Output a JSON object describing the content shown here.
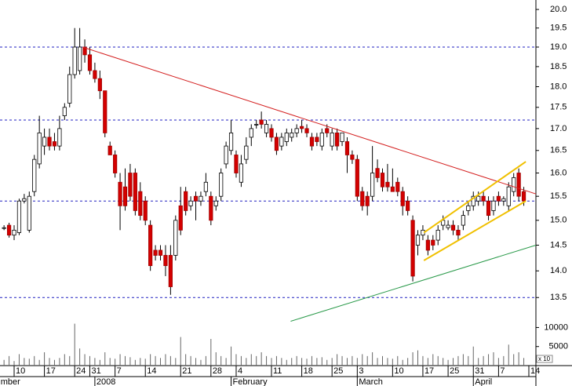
{
  "chart_data": {
    "type": "candlestick",
    "open": [
      14.85,
      14.9,
      14.7,
      14.75,
      15.4,
      14.8,
      15.6,
      16.2,
      16.6,
      16.8,
      16.7,
      16.6,
      17.3,
      17.6,
      18.3,
      18.4,
      19.0,
      18.8,
      18.4,
      18.2,
      17.9,
      16.6,
      16.4,
      15.8,
      15.7,
      16.0,
      16.0,
      15.6,
      15.4,
      14.9,
      14.4,
      14.4,
      14.3,
      14.3,
      14.3,
      15.3,
      15.6,
      15.3,
      15.5,
      15.4,
      15.6,
      15.5,
      15.3,
      15.5,
      16.2,
      16.5,
      16.4,
      15.8,
      16.3,
      16.8,
      17.1,
      17.2,
      16.9,
      17.0,
      16.8,
      16.6,
      16.7,
      16.8,
      16.9,
      17.05,
      17.0,
      16.8,
      16.8,
      16.6,
      17.0,
      16.6,
      16.9,
      16.7,
      16.7,
      16.4,
      16.3,
      15.6,
      15.5,
      15.5,
      16.1,
      16.0,
      15.8,
      15.7,
      15.8,
      15.6,
      15.4,
      15.0,
      14.5,
      14.7,
      14.6,
      14.6,
      14.6,
      14.9,
      14.85,
      14.9,
      14.8,
      14.9,
      15.2,
      15.3,
      15.4,
      15.5,
      15.4,
      15.2,
      15.5,
      15.4,
      15.3,
      15.6,
      16.0,
      15.6
    ],
    "high": [
      14.9,
      14.95,
      14.9,
      15.45,
      15.55,
      15.6,
      16.4,
      17.3,
      17.0,
      17.0,
      16.9,
      17.3,
      17.6,
      18.5,
      19.5,
      19.5,
      19.2,
      19.0,
      18.6,
      18.4,
      17.9,
      16.7,
      16.5,
      16.0,
      16.1,
      16.2,
      16.1,
      15.8,
      15.5,
      15.0,
      14.5,
      14.5,
      14.5,
      14.5,
      15.1,
      15.7,
      15.7,
      15.5,
      15.6,
      15.6,
      16.0,
      15.6,
      15.5,
      16.1,
      16.7,
      17.2,
      16.5,
      16.4,
      16.8,
      17.1,
      17.2,
      17.4,
      17.2,
      17.1,
      16.9,
      16.9,
      17.0,
      17.0,
      17.1,
      17.2,
      17.1,
      16.9,
      16.9,
      17.0,
      17.1,
      17.0,
      17.0,
      16.9,
      16.8,
      16.5,
      16.4,
      15.7,
      15.6,
      16.6,
      16.3,
      16.1,
      16.2,
      16.1,
      15.9,
      15.7,
      15.5,
      15.1,
      14.8,
      14.9,
      14.7,
      14.7,
      14.9,
      15.1,
      15.0,
      15.0,
      14.9,
      15.2,
      15.4,
      15.6,
      15.6,
      15.6,
      15.5,
      15.5,
      15.6,
      15.5,
      15.8,
      16.0,
      16.1,
      15.7
    ],
    "low": [
      14.8,
      14.65,
      14.6,
      14.7,
      15.35,
      14.75,
      15.5,
      16.1,
      16.4,
      16.5,
      16.5,
      16.5,
      17.2,
      17.5,
      18.2,
      18.3,
      18.6,
      18.3,
      18.1,
      17.7,
      16.8,
      16.4,
      15.9,
      14.8,
      15.2,
      15.4,
      15.1,
      15.0,
      14.9,
      14.0,
      14.2,
      14.2,
      13.9,
      13.55,
      14.2,
      14.7,
      15.1,
      15.2,
      15.0,
      15.3,
      15.5,
      14.9,
      15.2,
      15.4,
      16.1,
      16.4,
      15.9,
      15.7,
      16.2,
      16.6,
      17.0,
      17.0,
      16.8,
      16.7,
      16.4,
      16.5,
      16.6,
      16.7,
      16.8,
      16.9,
      16.8,
      16.5,
      16.6,
      16.5,
      16.8,
      16.5,
      16.5,
      16.6,
      16.0,
      16.2,
      15.4,
      15.2,
      15.1,
      15.4,
      15.8,
      15.6,
      15.6,
      15.6,
      15.5,
      15.1,
      15.1,
      13.8,
      14.3,
      14.6,
      14.3,
      14.4,
      14.5,
      14.8,
      14.8,
      14.7,
      14.6,
      14.8,
      15.1,
      15.2,
      15.3,
      15.3,
      15.0,
      15.1,
      15.3,
      15.3,
      15.2,
      15.5,
      15.4,
      15.3
    ],
    "close": [
      14.85,
      14.7,
      14.8,
      15.4,
      15.45,
      15.5,
      16.3,
      16.9,
      16.8,
      16.6,
      16.6,
      17.0,
      17.5,
      18.3,
      19.0,
      19.0,
      18.8,
      18.4,
      18.2,
      17.9,
      16.9,
      16.4,
      16.0,
      15.3,
      15.3,
      15.5,
      15.2,
      15.1,
      15.0,
      14.1,
      14.3,
      14.3,
      14.1,
      13.7,
      15.0,
      14.8,
      15.2,
      15.4,
      15.4,
      15.5,
      15.8,
      15.0,
      15.4,
      16.0,
      16.6,
      16.9,
      16.0,
      16.2,
      16.6,
      17.0,
      17.1,
      17.1,
      17.1,
      16.8,
      16.5,
      16.8,
      16.9,
      16.9,
      17.0,
      17.0,
      16.9,
      16.6,
      16.7,
      16.9,
      16.9,
      16.9,
      16.6,
      16.9,
      16.4,
      16.3,
      15.5,
      15.3,
      15.3,
      16.0,
      15.9,
      15.7,
      15.7,
      15.6,
      15.6,
      15.3,
      15.2,
      13.9,
      14.7,
      14.8,
      14.4,
      14.5,
      14.8,
      15.0,
      14.9,
      14.8,
      14.7,
      15.1,
      15.3,
      15.5,
      15.5,
      15.4,
      15.1,
      15.4,
      15.4,
      15.45,
      15.7,
      15.9,
      15.5,
      15.4
    ],
    "volume": [
      1500,
      2500,
      1200,
      3000,
      2000,
      1800,
      2500,
      1500,
      3500,
      2000,
      1500,
      2000,
      3000,
      2500,
      11000,
      4500,
      3000,
      2500,
      2000,
      1500,
      3500,
      2000,
      1800,
      3000,
      2500,
      2200,
      1500,
      2000,
      1800,
      3000,
      2500,
      2000,
      3000,
      2500,
      2000,
      7500,
      3000,
      2500,
      2000,
      1500,
      2500,
      7000,
      3500,
      2500,
      2000,
      5000,
      3000,
      2500,
      2000,
      3000,
      2500,
      3500,
      2500,
      2000,
      2500,
      2000,
      1500,
      2000,
      2500,
      2000,
      1800,
      2500,
      2000,
      2200,
      1500,
      2000,
      3000,
      2500,
      2000,
      2500,
      2000,
      3000,
      2500,
      3500,
      2000,
      2500,
      2000,
      1800,
      2500,
      1500,
      2000,
      3500,
      4000,
      2500,
      2000,
      3000,
      2500,
      2000,
      1500,
      2000,
      2500,
      3000,
      2500,
      5000,
      2000,
      2500,
      3000,
      3500,
      2000,
      2500,
      5500,
      3000,
      3500,
      2000
    ],
    "up_color": "#ffffff",
    "down_color": "#d40000",
    "log_scale": true,
    "ylim": [
      13.26,
      20.26
    ],
    "yticks": [
      {
        "value": 13.5,
        "label": "13.5"
      },
      {
        "value": 14.0,
        "label": "14.0"
      },
      14.5,
      {
        "value": 15.0,
        "label": "15.0"
      },
      15.5,
      {
        "value": 16.0,
        "label": "16.0"
      },
      16.5,
      {
        "value": 17.0,
        "label": "17.0"
      },
      17.5,
      {
        "value": 18.0,
        "label": "18.0"
      },
      18.5,
      {
        "value": 19.0,
        "label": "19.0"
      },
      19.5,
      {
        "value": 20.0,
        "label": "20.0"
      }
    ],
    "volume_ylim": [
      0,
      14000
    ],
    "volume_yticks": [
      5000,
      10000
    ],
    "volume_note": "x 10",
    "xlim": [
      -0.8,
      105.4
    ],
    "xticks": [
      {
        "value": 2,
        "label": "10"
      },
      {
        "value": 8,
        "label": "17"
      },
      {
        "value": 14,
        "label": "24"
      },
      {
        "value": 17,
        "label": "31"
      },
      {
        "value": 22,
        "label": "7"
      },
      {
        "value": 28,
        "label": "14"
      },
      {
        "value": 35,
        "label": "21"
      },
      {
        "value": 41,
        "label": "28"
      },
      {
        "value": 46,
        "label": "4"
      },
      {
        "value": 53,
        "label": "11"
      },
      {
        "value": 59,
        "label": "18"
      },
      {
        "value": 65,
        "label": "25"
      },
      {
        "value": 70,
        "label": "3"
      },
      {
        "value": 77,
        "label": "10"
      },
      {
        "value": 83,
        "label": "17"
      },
      {
        "value": 88,
        "label": "25"
      },
      {
        "value": 93,
        "label": "31"
      },
      {
        "value": 98,
        "label": "7"
      },
      {
        "value": 104,
        "label": "14"
      }
    ],
    "months": [
      {
        "value": -1,
        "label": "mber"
      },
      {
        "value": 18,
        "label": "2008"
      },
      {
        "value": 45,
        "label": "February"
      },
      {
        "value": 70,
        "label": "March"
      },
      {
        "value": 93,
        "label": "April"
      }
    ],
    "hlines": [
      {
        "value": 19.0,
        "color": "#2020c0"
      },
      {
        "value": 17.2,
        "color": "#2020c0"
      },
      {
        "value": 15.4,
        "color": "#2020c0"
      },
      {
        "value": 13.5,
        "color": "#2020c0"
      }
    ],
    "trendlines": [
      {
        "x": [
          15.55,
          105.4
        ],
        "y": [
          19.0,
          15.55
        ],
        "color": "#d42020"
      },
      {
        "x": [
          56.8,
          105.4
        ],
        "y": [
          13.07,
          14.5
        ],
        "color": "#2a9a4a"
      },
      {
        "x": [
          83.2,
          103.4
        ],
        "y": [
          14.75,
          16.25
        ],
        "color": "#f0c000"
      },
      {
        "x": [
          83.2,
          103.4
        ],
        "y": [
          14.2,
          15.4
        ],
        "color": "#f0c000"
      }
    ]
  }
}
